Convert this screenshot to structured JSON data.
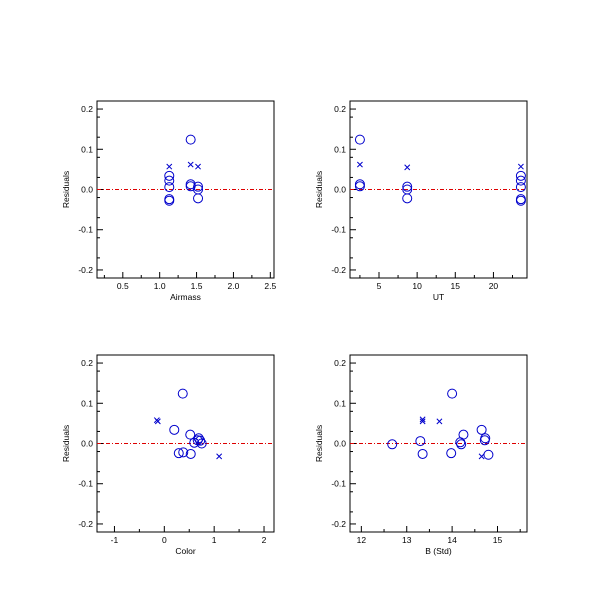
{
  "chart_data": [
    {
      "type": "scatter",
      "xlabel": "Airmass",
      "ylabel": "Residuals",
      "xlim": [
        0.15,
        2.55
      ],
      "ylim": [
        -0.22,
        0.22
      ],
      "xticks": [
        0.5,
        1.0,
        1.5,
        2.0,
        2.5
      ],
      "xtick_labels": [
        "0.5",
        "1.0",
        "1.5",
        "2.0",
        "2.5"
      ],
      "yticks": [
        -0.2,
        -0.1,
        0.0,
        0.1,
        0.2
      ],
      "ytick_labels": [
        "-0.2",
        "-0.1",
        "0.0",
        "0.1",
        "0.2"
      ],
      "reference_line": {
        "y": 0.0,
        "color": "#dd0000",
        "style": "dash-dot"
      },
      "series": [
        {
          "marker": "circle",
          "color": "#0000cc",
          "points": [
            [
              1.13,
              0.034
            ],
            [
              1.13,
              0.022
            ],
            [
              1.13,
              0.006
            ],
            [
              1.13,
              -0.024
            ],
            [
              1.13,
              -0.028
            ],
            [
              1.42,
              0.124
            ],
            [
              1.42,
              0.013
            ],
            [
              1.42,
              0.008
            ],
            [
              1.52,
              0.007
            ],
            [
              1.52,
              0.0
            ],
            [
              1.52,
              -0.022
            ]
          ]
        },
        {
          "marker": "x",
          "color": "#0000cc",
          "points": [
            [
              1.13,
              0.057
            ],
            [
              1.42,
              0.062
            ],
            [
              1.52,
              0.057
            ]
          ]
        }
      ]
    },
    {
      "type": "scatter",
      "xlabel": "UT",
      "ylabel": "Residuals",
      "xlim": [
        1.2,
        24.4
      ],
      "ylim": [
        -0.22,
        0.22
      ],
      "xticks": [
        5,
        10,
        15,
        20
      ],
      "xtick_labels": [
        "5",
        "10",
        "15",
        "20"
      ],
      "yticks": [
        -0.2,
        -0.1,
        0.0,
        0.1,
        0.2
      ],
      "ytick_labels": [
        "-0.2",
        "-0.1",
        "0.0",
        "0.1",
        "0.2"
      ],
      "reference_line": {
        "y": 0.0,
        "color": "#dd0000",
        "style": "dash-dot"
      },
      "series": [
        {
          "marker": "circle",
          "color": "#0000cc",
          "points": [
            [
              2.5,
              0.124
            ],
            [
              2.5,
              0.013
            ],
            [
              2.5,
              0.008
            ],
            [
              8.7,
              0.007
            ],
            [
              8.7,
              0.0
            ],
            [
              8.7,
              -0.022
            ],
            [
              23.6,
              0.034
            ],
            [
              23.6,
              0.022
            ],
            [
              23.6,
              0.006
            ],
            [
              23.6,
              -0.024
            ],
            [
              23.6,
              -0.028
            ]
          ]
        },
        {
          "marker": "x",
          "color": "#0000cc",
          "points": [
            [
              2.5,
              0.062
            ],
            [
              8.7,
              0.055
            ],
            [
              23.6,
              0.057
            ]
          ]
        }
      ]
    },
    {
      "type": "scatter",
      "xlabel": "Color",
      "ylabel": "Residuals",
      "xlim": [
        -1.35,
        2.2
      ],
      "ylim": [
        -0.22,
        0.22
      ],
      "xticks": [
        -1,
        0,
        1,
        2
      ],
      "xtick_labels": [
        "-1",
        "0",
        "1",
        "2"
      ],
      "yticks": [
        -0.2,
        -0.1,
        0.0,
        0.1,
        0.2
      ],
      "ytick_labels": [
        "-0.2",
        "-0.1",
        "0.0",
        "0.1",
        "0.2"
      ],
      "reference_line": {
        "y": 0.0,
        "color": "#dd0000",
        "style": "dash-dot"
      },
      "series": [
        {
          "marker": "circle",
          "color": "#0000cc",
          "points": [
            [
              0.37,
              0.124
            ],
            [
              0.2,
              0.034
            ],
            [
              0.52,
              0.022
            ],
            [
              0.69,
              0.013
            ],
            [
              0.67,
              0.008
            ],
            [
              0.72,
              0.007
            ],
            [
              0.6,
              0.002
            ],
            [
              0.75,
              0.0
            ],
            [
              0.29,
              -0.024
            ],
            [
              0.38,
              -0.022
            ],
            [
              0.53,
              -0.026
            ]
          ]
        },
        {
          "marker": "x",
          "color": "#0000cc",
          "points": [
            [
              -0.15,
              0.058
            ],
            [
              -0.13,
              0.055
            ],
            [
              1.1,
              -0.032
            ]
          ]
        }
      ]
    },
    {
      "type": "scatter",
      "xlabel": "B (Std)",
      "ylabel": "Residuals",
      "xlim": [
        11.75,
        15.65
      ],
      "ylim": [
        -0.22,
        0.22
      ],
      "xticks": [
        12,
        13,
        14,
        15
      ],
      "xtick_labels": [
        "12",
        "13",
        "14",
        "15"
      ],
      "yticks": [
        -0.2,
        -0.1,
        0.0,
        0.1,
        0.2
      ],
      "ytick_labels": [
        "-0.2",
        "-0.1",
        "0.0",
        "0.1",
        "0.2"
      ],
      "reference_line": {
        "y": 0.0,
        "color": "#dd0000",
        "style": "dash-dot"
      },
      "series": [
        {
          "marker": "circle",
          "color": "#0000cc",
          "points": [
            [
              14.0,
              0.124
            ],
            [
              14.65,
              0.034
            ],
            [
              14.25,
              0.022
            ],
            [
              14.73,
              0.013
            ],
            [
              14.72,
              0.008
            ],
            [
              13.3,
              0.006
            ],
            [
              14.18,
              0.003
            ],
            [
              14.2,
              -0.002
            ],
            [
              12.68,
              -0.002
            ],
            [
              13.35,
              -0.026
            ],
            [
              13.98,
              -0.024
            ],
            [
              14.8,
              -0.028
            ]
          ]
        },
        {
          "marker": "x",
          "color": "#0000cc",
          "points": [
            [
              13.35,
              0.06
            ],
            [
              13.35,
              0.055
            ],
            [
              13.72,
              0.055
            ],
            [
              14.65,
              -0.032
            ]
          ]
        }
      ]
    }
  ]
}
